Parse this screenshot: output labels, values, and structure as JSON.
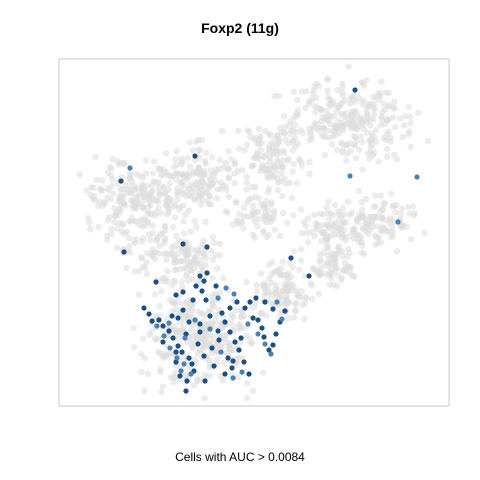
{
  "chart_data": {
    "type": "scatter",
    "title": "Foxp2 (11g)",
    "caption": "Cells with AUC > 0.0084",
    "xlabel": "",
    "ylabel": "",
    "xlim": [
      0,
      390
    ],
    "ylim": [
      0,
      347
    ],
    "axes_visible": false,
    "grid": false,
    "colors": {
      "background_cells": "#dcdcdc",
      "highlight_dark": "#1c4f82",
      "highlight_light": "#4a82b4",
      "frame": "#c8c8c8"
    },
    "series": [
      {
        "name": "",
        "color": "#1c4f82",
        "points": [
          [
            296,
            316
          ],
          [
            136,
            250
          ],
          [
            62,
            225
          ],
          [
            148,
            159
          ],
          [
            124,
            162
          ],
          [
            65,
            154
          ],
          [
            97,
            124
          ],
          [
            232,
            148
          ],
          [
            148,
            133
          ],
          [
            145,
            125
          ],
          [
            137,
            120
          ],
          [
            143,
            115
          ],
          [
            85,
            98
          ],
          [
            90,
            92
          ],
          [
            93,
            85
          ],
          [
            100,
            86
          ],
          [
            104,
            80
          ],
          [
            110,
            75
          ],
          [
            114,
            68
          ],
          [
            119,
            60
          ],
          [
            123,
            54
          ],
          [
            130,
            48
          ],
          [
            133,
            42
          ],
          [
            135,
            35
          ],
          [
            128,
            25
          ],
          [
            121,
            30
          ],
          [
            127,
            15
          ],
          [
            104,
            64
          ],
          [
            113,
            90
          ],
          [
            119,
            88
          ],
          [
            124,
            96
          ],
          [
            130,
            84
          ],
          [
            127,
            72
          ],
          [
            117,
            54
          ],
          [
            139,
            62
          ],
          [
            145,
            50
          ],
          [
            153,
            58
          ],
          [
            159,
            75
          ],
          [
            166,
            84
          ],
          [
            171,
            74
          ],
          [
            176,
            64
          ],
          [
            180,
            56
          ],
          [
            185,
            44
          ],
          [
            190,
            32
          ],
          [
            173,
            38
          ],
          [
            169,
            48
          ],
          [
            160,
            66
          ],
          [
            163,
            93
          ],
          [
            171,
            98
          ],
          [
            178,
            104
          ],
          [
            186,
            98
          ],
          [
            194,
            88
          ],
          [
            199,
            86
          ],
          [
            203,
            78
          ],
          [
            205,
            69
          ],
          [
            210,
            56
          ],
          [
            214,
            61
          ],
          [
            217,
            72
          ],
          [
            221,
            84
          ],
          [
            226,
            95
          ],
          [
            214,
            97
          ],
          [
            206,
            104
          ],
          [
            197,
            108
          ],
          [
            191,
            104
          ],
          [
            182,
            68
          ],
          [
            174,
            45
          ],
          [
            166,
            32
          ],
          [
            155,
            40
          ],
          [
            141,
            74
          ],
          [
            141,
            82
          ],
          [
            151,
            90
          ],
          [
            147,
            106
          ],
          [
            134,
            106
          ],
          [
            124,
            114
          ],
          [
            117,
            111
          ],
          [
            141,
            130
          ],
          [
            157,
            120
          ],
          [
            250,
            130
          ],
          [
            146,
            25
          ],
          [
            117,
            44
          ]
        ]
      },
      {
        "name": "",
        "color": "#4a82b4",
        "points": [
          [
            291,
            230
          ],
          [
            358,
            229
          ],
          [
            339,
            184
          ],
          [
            71,
            238
          ],
          [
            98,
            80
          ],
          [
            105,
            70
          ],
          [
            111,
            58
          ],
          [
            118,
            48
          ],
          [
            125,
            42
          ],
          [
            132,
            32
          ],
          [
            159,
            108
          ],
          [
            167,
            118
          ],
          [
            175,
            112
          ],
          [
            189,
            82
          ],
          [
            199,
            72
          ],
          [
            206,
            62
          ],
          [
            212,
            52
          ],
          [
            183,
            34
          ],
          [
            174,
            28
          ],
          [
            162,
            54
          ],
          [
            151,
            77
          ],
          [
            136,
            86
          ],
          [
            126,
            68
          ],
          [
            110,
            83
          ],
          [
            122,
            35
          ],
          [
            218,
            104
          ],
          [
            223,
            87
          ]
        ]
      }
    ]
  }
}
